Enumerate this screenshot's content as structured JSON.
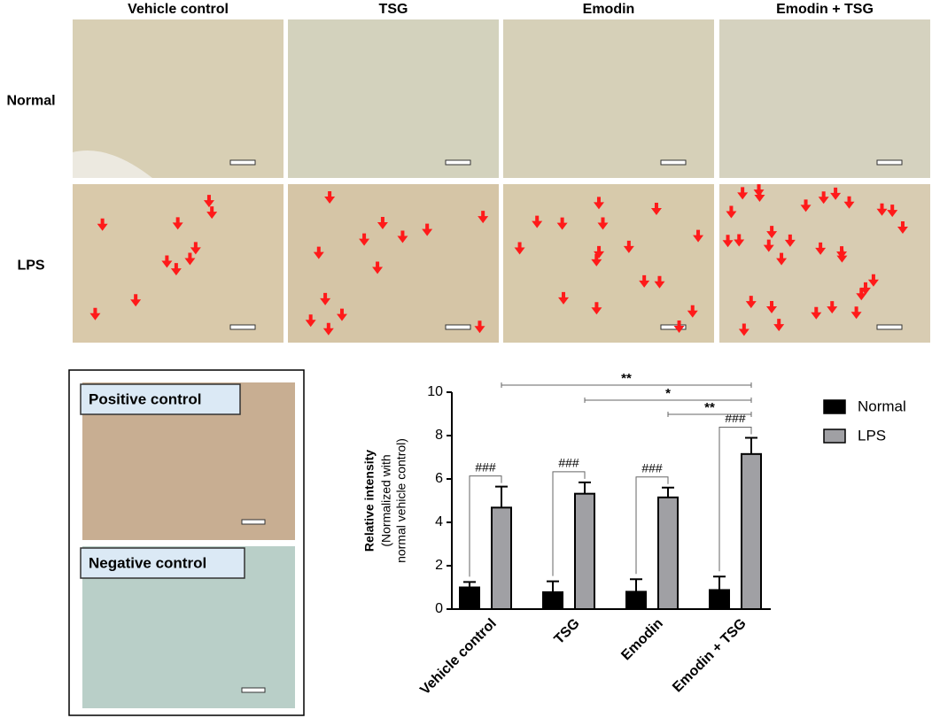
{
  "columns": [
    "Vehicle control",
    "TSG",
    "Emodin",
    "Emodin + TSG"
  ],
  "rows": [
    "Normal",
    "LPS"
  ],
  "controls": [
    "Positive control",
    "Negative control"
  ],
  "chart_data": {
    "type": "bar",
    "ylabel": "Relative intensity",
    "ylabel_sub": [
      "(Normalized with",
      "normal vehicle control)"
    ],
    "categories": [
      "Vehicle control",
      "TSG",
      "Emodin",
      "Emodin + TSG"
    ],
    "series": [
      {
        "name": "Normal",
        "color": "#000000",
        "values": [
          1.0,
          0.78,
          0.8,
          0.88
        ],
        "errors": [
          0.25,
          0.5,
          0.58,
          0.62
        ]
      },
      {
        "name": "LPS",
        "color": "#a0a0a4",
        "values": [
          4.68,
          5.32,
          5.15,
          7.15
        ],
        "errors": [
          0.97,
          0.52,
          0.45,
          0.75
        ]
      }
    ],
    "ylim": [
      0,
      10
    ],
    "yticks": [
      0,
      2,
      4,
      6,
      8,
      10
    ],
    "hash_labels": [
      "###",
      "###",
      "###",
      "###"
    ],
    "significance": [
      "**",
      "*",
      "**"
    ]
  }
}
